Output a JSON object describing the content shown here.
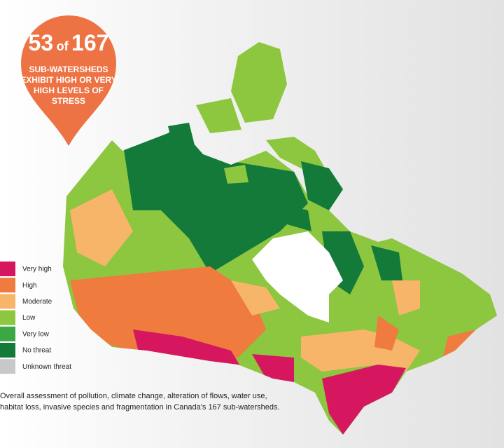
{
  "header": {
    "count": 53,
    "of": "of",
    "total": 167,
    "text": [
      "SUB-WATERSHEDS",
      "EXHIBIT HIGH OR VERY",
      "HIGH LEVELS OF",
      "STRESS"
    ]
  },
  "legend": [
    {
      "label": "Very high",
      "color": "#d6175f"
    },
    {
      "label": "High",
      "color": "#ef7b3e"
    },
    {
      "label": "Moderate",
      "color": "#f7b56a"
    },
    {
      "label": "Low",
      "color": "#8dc63f"
    },
    {
      "label": "Very low",
      "color": "#3aa845"
    },
    {
      "label": "No threat",
      "color": "#137a3a"
    },
    {
      "label": "Unknown threat",
      "color": "#c8c8c8"
    }
  ],
  "caption": [
    "Overall assessment of pollution, climate change, alteration of flows, water use,",
    "habitat loss, invasive species and fragmentation in Canada's 167 sub-watersheds."
  ]
}
